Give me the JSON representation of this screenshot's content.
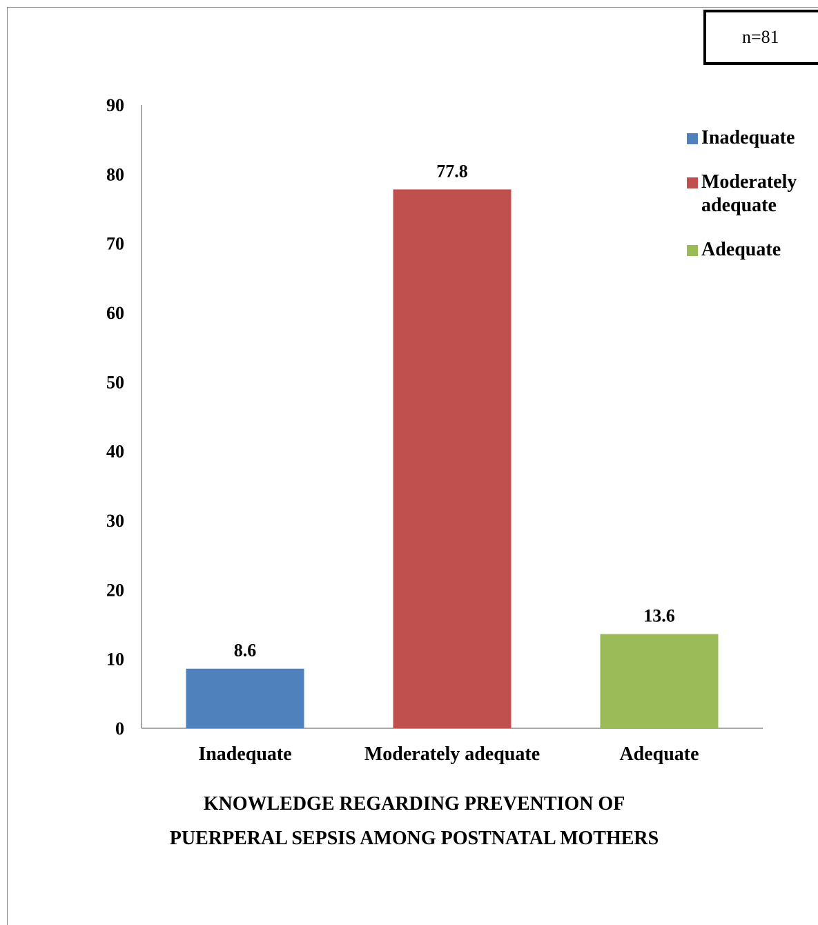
{
  "note": "n=81",
  "chart_data": {
    "type": "bar",
    "categories": [
      "Inadequate",
      "Moderately adequate",
      "Adequate"
    ],
    "values": [
      8.6,
      77.8,
      13.6
    ],
    "data_labels": [
      "8.6",
      "77.8",
      "13.6"
    ],
    "colors": [
      "#4F81BD",
      "#C0504D",
      "#9BBB59"
    ],
    "title": "",
    "xlabel_lines": [
      "KNOWLEDGE REGARDING PREVENTION OF",
      "PUERPERAL SEPSIS AMONG POSTNATAL MOTHERS"
    ],
    "ylabel": "",
    "ylim": [
      0,
      90
    ],
    "yticks": [
      0,
      10,
      20,
      30,
      40,
      50,
      60,
      70,
      80,
      90
    ],
    "grid": false,
    "legend": {
      "position": "right",
      "items": [
        "Inadequate",
        "Moderately adequate",
        "Adequate"
      ]
    }
  }
}
